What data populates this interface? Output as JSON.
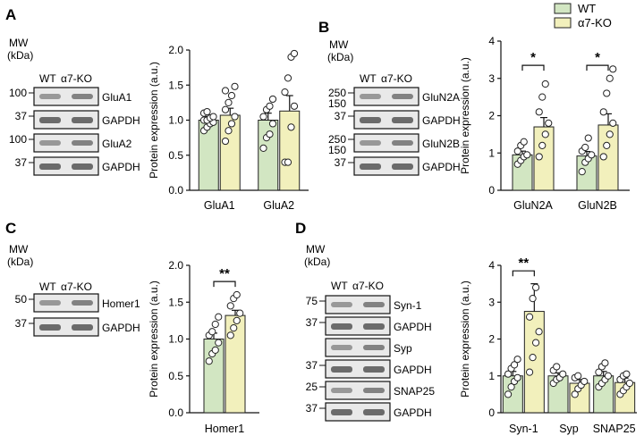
{
  "colors": {
    "wt": "#d2e6c2",
    "ko": "#f2f0bc",
    "edge": "#222222",
    "blot_bg": "#e9e9e9",
    "band": "#555555"
  },
  "legend": {
    "wt": "WT",
    "ko": "α7-KO"
  },
  "blot_text": {
    "mw_line1": "MW",
    "mw_line2": "(kDa)",
    "wt": "WT",
    "ko": "α7-KO"
  },
  "panels": [
    {
      "letter": "A",
      "blots": [
        {
          "mw": "100",
          "label": "GluA1"
        },
        {
          "mw": "37",
          "label": "GAPDH"
        },
        {
          "mw": "100",
          "label": "GluA2"
        },
        {
          "mw": "37",
          "label": "GAPDH"
        }
      ]
    },
    {
      "letter": "B",
      "blots": [
        {
          "mw": "250",
          "mw2": "150",
          "label": "GluN2A"
        },
        {
          "mw": "37",
          "label": "GAPDH"
        },
        {
          "mw": "250",
          "mw2": "150",
          "label": "GluN2B"
        },
        {
          "mw": "37",
          "label": "GAPDH"
        }
      ]
    },
    {
      "letter": "C",
      "blots": [
        {
          "mw": "50",
          "label": "Homer1"
        },
        {
          "mw": "37",
          "label": "GAPDH"
        }
      ]
    },
    {
      "letter": "D",
      "blots": [
        {
          "mw": "75",
          "label": "Syn-1"
        },
        {
          "mw": "37",
          "label": "GAPDH"
        },
        {
          "mw": "",
          "label": "Syp"
        },
        {
          "mw": "37",
          "label": "GAPDH"
        },
        {
          "mw": "25",
          "label": "SNAP25"
        },
        {
          "mw": "37",
          "label": "GAPDH"
        }
      ]
    }
  ],
  "chart_data": [
    {
      "panel": "A",
      "type": "bar",
      "ylabel": "Protein expression (a.u.)",
      "ylim": [
        0,
        2.0
      ],
      "yticks": [
        "0.0",
        "0.5",
        "1.0",
        "1.5",
        "2.0"
      ],
      "categories": [
        "GluA1",
        "GluA2"
      ],
      "series": [
        {
          "name": "WT",
          "values": [
            1.0,
            1.0
          ],
          "errors": [
            0.05,
            0.1
          ],
          "points": [
            [
              0.85,
              0.9,
              0.95,
              0.97,
              1.0,
              1.0,
              1.03,
              1.05,
              1.1,
              1.12
            ],
            [
              0.6,
              0.75,
              0.8,
              0.95,
              1.05,
              1.15,
              1.2,
              1.3
            ]
          ]
        },
        {
          "name": "α7-KO",
          "values": [
            1.07,
            1.13
          ],
          "errors": [
            0.1,
            0.22
          ],
          "points": [
            [
              0.7,
              0.85,
              0.95,
              1.05,
              1.15,
              1.25,
              1.35,
              1.48,
              1.42
            ],
            [
              0.4,
              0.4,
              0.9,
              1.2,
              1.4,
              1.6,
              1.9,
              1.95
            ]
          ]
        }
      ],
      "significance": []
    },
    {
      "panel": "B",
      "type": "bar",
      "ylabel": "Protein expression (a.u.)",
      "ylim": [
        0,
        4
      ],
      "yticks": [
        "0",
        "1",
        "2",
        "3",
        "4"
      ],
      "categories": [
        "GluN2A",
        "GluN2B"
      ],
      "series": [
        {
          "name": "WT",
          "values": [
            0.95,
            0.92
          ],
          "errors": [
            0.1,
            0.12
          ],
          "points": [
            [
              0.7,
              0.8,
              0.9,
              0.95,
              1.05,
              1.2,
              1.3
            ],
            [
              0.5,
              0.75,
              0.85,
              0.95,
              1.05,
              1.15,
              1.4
            ]
          ]
        },
        {
          "name": "α7-KO",
          "values": [
            1.7,
            1.75
          ],
          "errors": [
            0.25,
            0.3
          ],
          "points": [
            [
              0.9,
              1.2,
              1.5,
              1.8,
              2.1,
              2.5,
              2.85
            ],
            [
              0.9,
              1.2,
              1.5,
              1.8,
              2.1,
              2.6,
              3.0,
              3.25
            ]
          ]
        }
      ],
      "significance": [
        {
          "group": 0,
          "label": "*",
          "y": 3.35
        },
        {
          "group": 1,
          "label": "*",
          "y": 3.35
        }
      ]
    },
    {
      "panel": "C",
      "type": "bar",
      "ylabel": "Protein expression (a.u.)",
      "ylim": [
        0,
        2.0
      ],
      "yticks": [
        "0.0",
        "0.5",
        "1.0",
        "1.5",
        "2.0"
      ],
      "categories": [
        "Homer1"
      ],
      "series": [
        {
          "name": "WT",
          "values": [
            1.0
          ],
          "errors": [
            0.08
          ],
          "points": [
            [
              0.7,
              0.8,
              0.85,
              0.95,
              1.05,
              1.1,
              1.2,
              1.3
            ]
          ]
        },
        {
          "name": "α7-KO",
          "values": [
            1.32
          ],
          "errors": [
            0.07
          ],
          "points": [
            [
              1.05,
              1.15,
              1.25,
              1.35,
              1.45,
              1.55,
              1.6
            ]
          ]
        }
      ],
      "significance": [
        {
          "group": 0,
          "label": "**",
          "y": 1.78
        }
      ]
    },
    {
      "panel": "D",
      "type": "bar",
      "ylabel": "Protein expression (a.u.)",
      "ylim": [
        0,
        4
      ],
      "yticks": [
        "0",
        "1",
        "2",
        "3",
        "4"
      ],
      "categories": [
        "Syn-1",
        "Syp",
        "SNAP25"
      ],
      "series": [
        {
          "name": "WT",
          "values": [
            1.0,
            1.0,
            1.0
          ],
          "errors": [
            0.12,
            0.08,
            0.12
          ],
          "points": [
            [
              0.5,
              0.7,
              0.85,
              0.95,
              1.05,
              1.2,
              1.3,
              1.45
            ],
            [
              0.8,
              0.9,
              0.95,
              1.05,
              1.15,
              1.25
            ],
            [
              0.7,
              0.8,
              0.9,
              1.0,
              1.1,
              1.25,
              1.35
            ]
          ]
        },
        {
          "name": "α7-KO",
          "values": [
            2.75,
            0.8,
            0.82
          ],
          "errors": [
            0.75,
            0.1,
            0.12
          ],
          "points": [
            [
              1.1,
              1.5,
              1.9,
              2.2,
              2.6,
              3.1,
              3.4
            ],
            [
              0.5,
              0.65,
              0.75,
              0.85,
              0.95,
              1.0
            ],
            [
              0.5,
              0.6,
              0.7,
              0.8,
              0.9,
              1.0,
              1.05
            ]
          ]
        }
      ],
      "significance": [
        {
          "group": 0,
          "label": "**",
          "y": 3.85
        }
      ]
    }
  ]
}
